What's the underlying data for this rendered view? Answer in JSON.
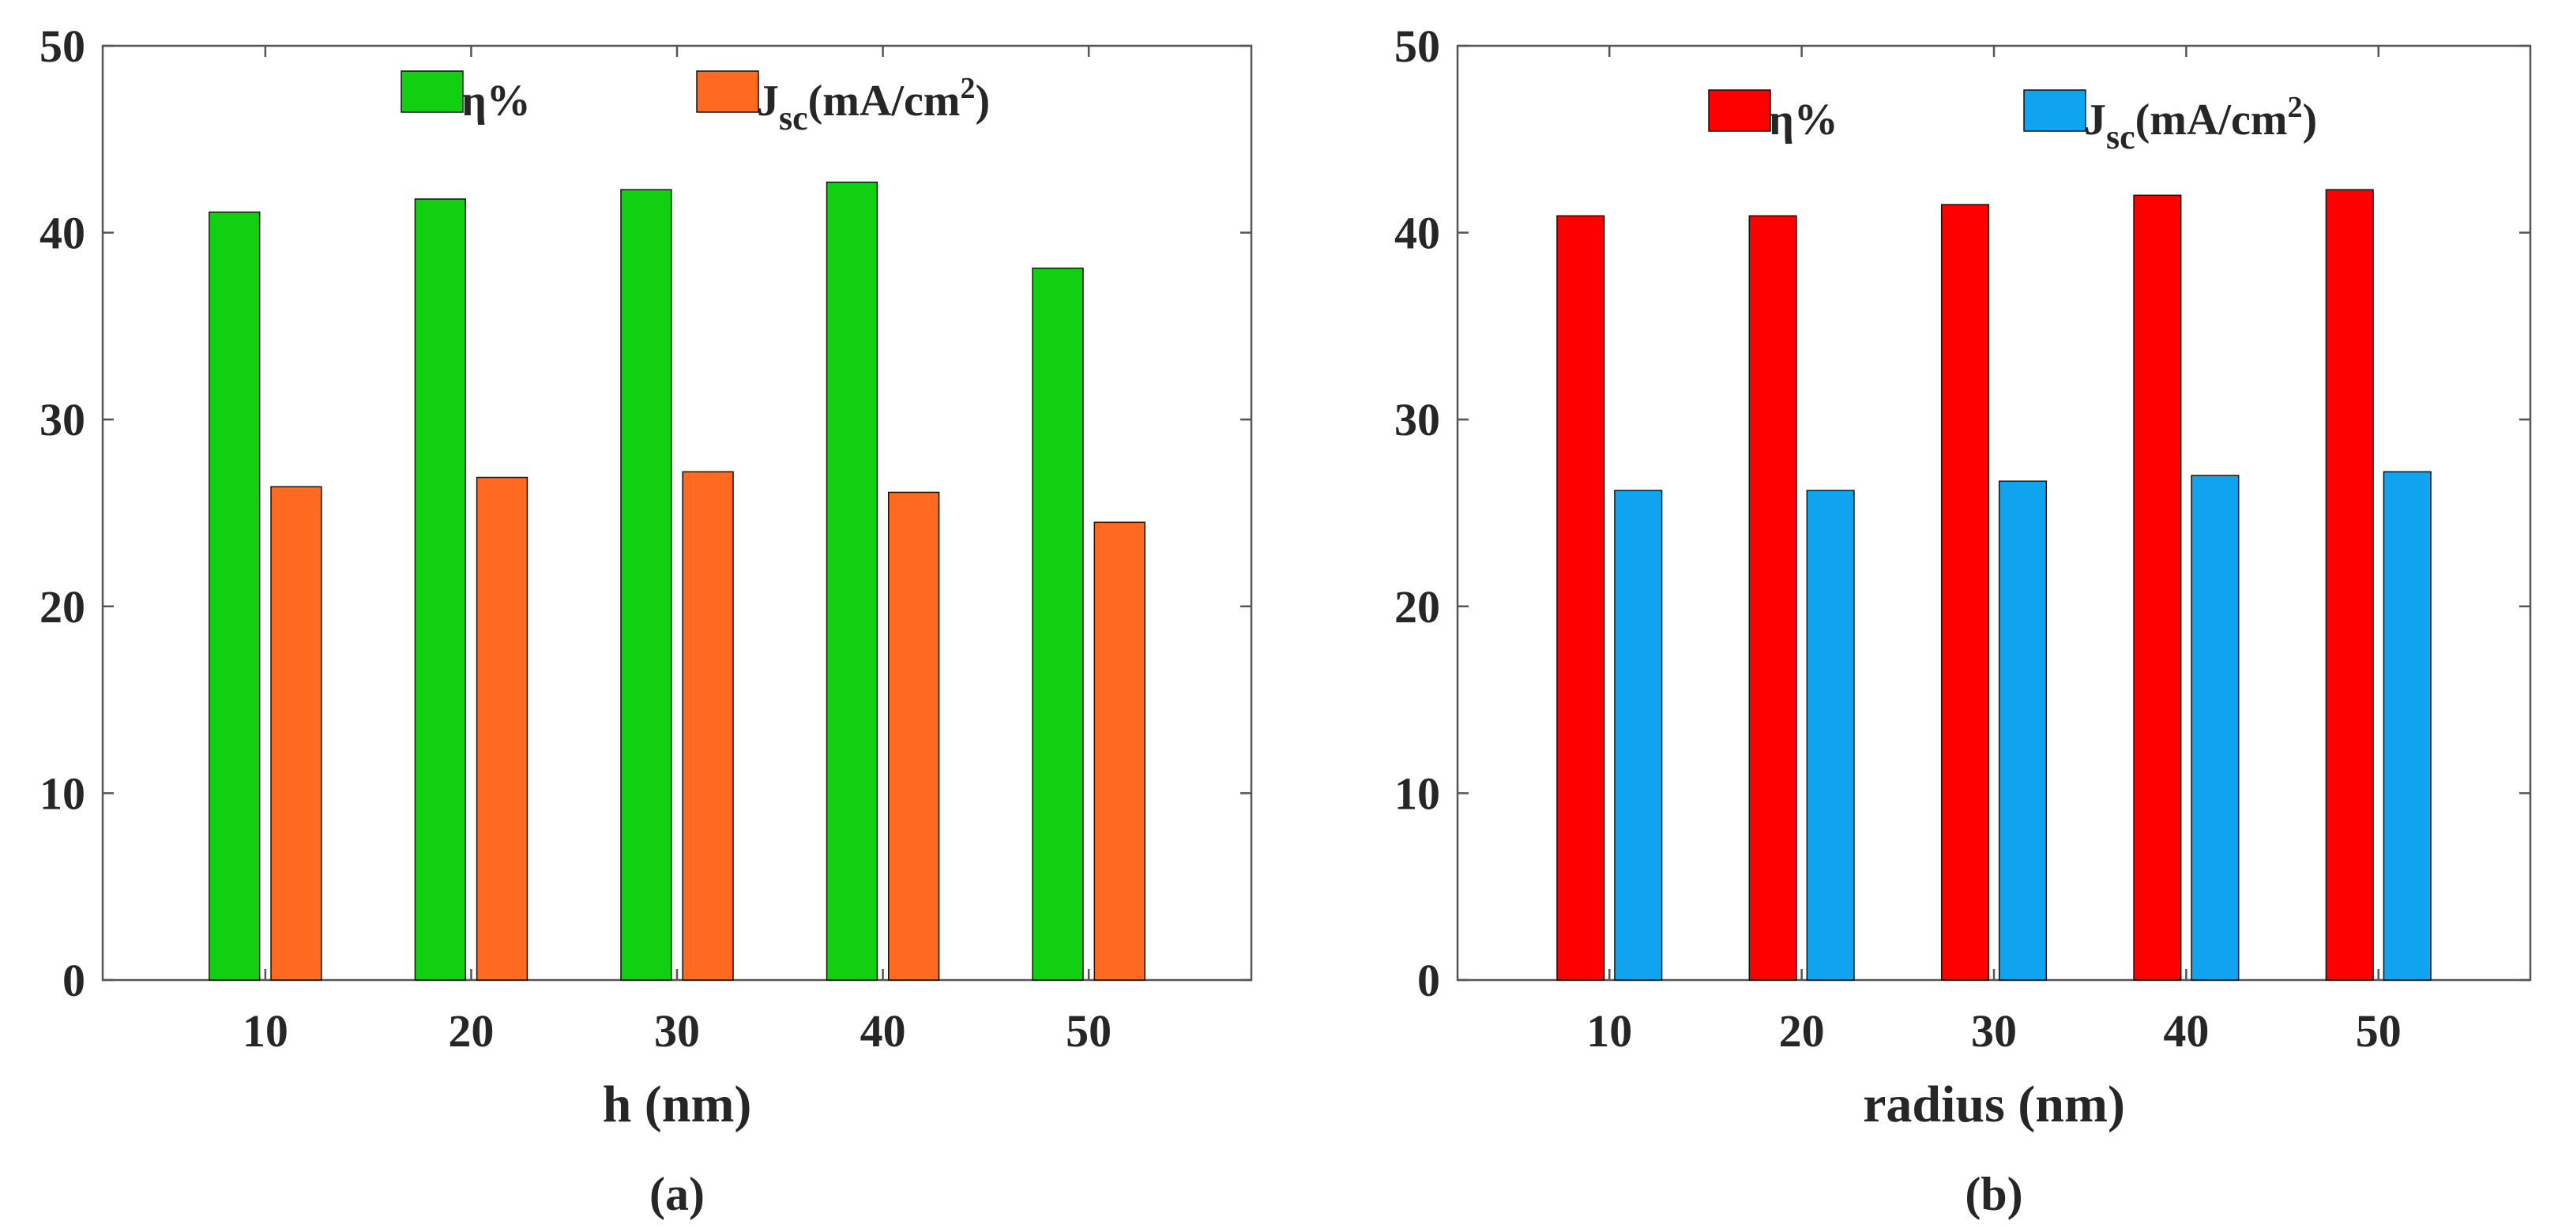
{
  "chart_data": [
    {
      "type": "bar",
      "panel_label": "(a)",
      "xlabel": "h (nm)",
      "ylabel": "",
      "categories": [
        "10",
        "20",
        "30",
        "40",
        "50"
      ],
      "ylim": [
        0,
        50
      ],
      "yticks": [
        "0",
        "10",
        "20",
        "30",
        "40",
        "50"
      ],
      "grid": false,
      "legend_position": "top",
      "series": [
        {
          "name": "η%",
          "legend_label": "η%",
          "color": "#11d011",
          "values": [
            41.1,
            41.8,
            42.3,
            42.7,
            38.1
          ]
        },
        {
          "name": "Jsc(mA/cm2)",
          "legend_label": "J",
          "legend_sub": "sc",
          "legend_mid": "(mA/cm",
          "legend_sup": "2",
          "legend_end": ")",
          "color": "#ff6a20",
          "values": [
            26.4,
            26.9,
            27.2,
            26.1,
            24.5
          ]
        }
      ]
    },
    {
      "type": "bar",
      "panel_label": "(b)",
      "xlabel": "radius (nm)",
      "ylabel": "",
      "categories": [
        "10",
        "20",
        "30",
        "40",
        "50"
      ],
      "ylim": [
        0,
        50
      ],
      "yticks": [
        "0",
        "10",
        "20",
        "30",
        "40",
        "50"
      ],
      "grid": false,
      "legend_position": "top",
      "series": [
        {
          "name": "η%",
          "legend_label": "η%",
          "color": "#ff0000",
          "values": [
            40.9,
            40.9,
            41.5,
            42.0,
            42.3
          ]
        },
        {
          "name": "Jsc(mA/cm2)",
          "legend_label": "J",
          "legend_sub": "sc",
          "legend_mid": "(mA/cm",
          "legend_sup": "2",
          "legend_end": ")",
          "color": "#0fa3f0",
          "values": [
            26.2,
            26.2,
            26.7,
            27.0,
            27.2
          ]
        }
      ]
    }
  ]
}
